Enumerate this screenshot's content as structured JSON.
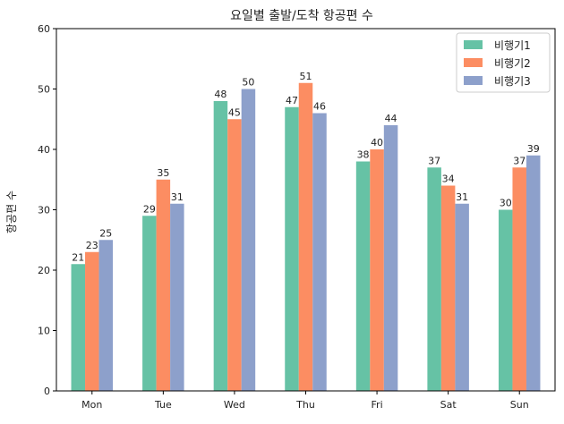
{
  "chart_data": {
    "type": "bar",
    "title": "요일별 출발/도착 항공편 수",
    "xlabel": "",
    "ylabel": "항공편 수",
    "ylim": [
      0,
      60
    ],
    "yticks": [
      0,
      10,
      20,
      30,
      40,
      50,
      60
    ],
    "categories": [
      "Mon",
      "Tue",
      "Wed",
      "Thu",
      "Fri",
      "Sat",
      "Sun"
    ],
    "series": [
      {
        "name": "비행기1",
        "color": "#66c2a5",
        "values": [
          21,
          29,
          48,
          47,
          38,
          37,
          30
        ]
      },
      {
        "name": "비행기2",
        "color": "#fc8d62",
        "values": [
          23,
          35,
          45,
          51,
          40,
          34,
          37
        ]
      },
      {
        "name": "비행기3",
        "color": "#8da0cb",
        "values": [
          25,
          31,
          50,
          46,
          44,
          31,
          39
        ]
      }
    ],
    "legend": "top-right",
    "grid": false
  }
}
